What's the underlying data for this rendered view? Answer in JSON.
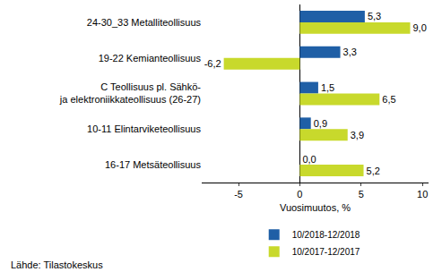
{
  "chart_data": {
    "type": "bar",
    "orientation": "horizontal",
    "categories": [
      "24-30_33 Metalliteollisuus",
      "19-22 Kemianteollisuus",
      "C Teollisuus pl. Sähkö-\nja elektroniikkateollisuus (26-27)",
      "10-11 Elintarviketeollisuus",
      "16-17 Metsäteollisuus"
    ],
    "series": [
      {
        "name": "10/2018-12/2018",
        "color": "#1f5fa6",
        "values": [
          5.3,
          3.3,
          1.5,
          0.9,
          0.0
        ],
        "value_labels": [
          "5,3",
          "3,3",
          "1,5",
          "0,9",
          "0,0"
        ]
      },
      {
        "name": "10/2017-12/2017",
        "color": "#c8d92c",
        "values": [
          9.0,
          -6.2,
          6.5,
          3.9,
          5.2
        ],
        "value_labels": [
          "9,0",
          "-6,2",
          "6,5",
          "3,9",
          "5,2"
        ]
      }
    ],
    "x_label": "Vuosimuutos, %",
    "xlim": [
      -8,
      10.5
    ],
    "xticks": [
      -5,
      0,
      5,
      10
    ],
    "grid": false,
    "data_labels": true,
    "legend": "bottom",
    "source": "Lähde: Tilastokeskus"
  }
}
